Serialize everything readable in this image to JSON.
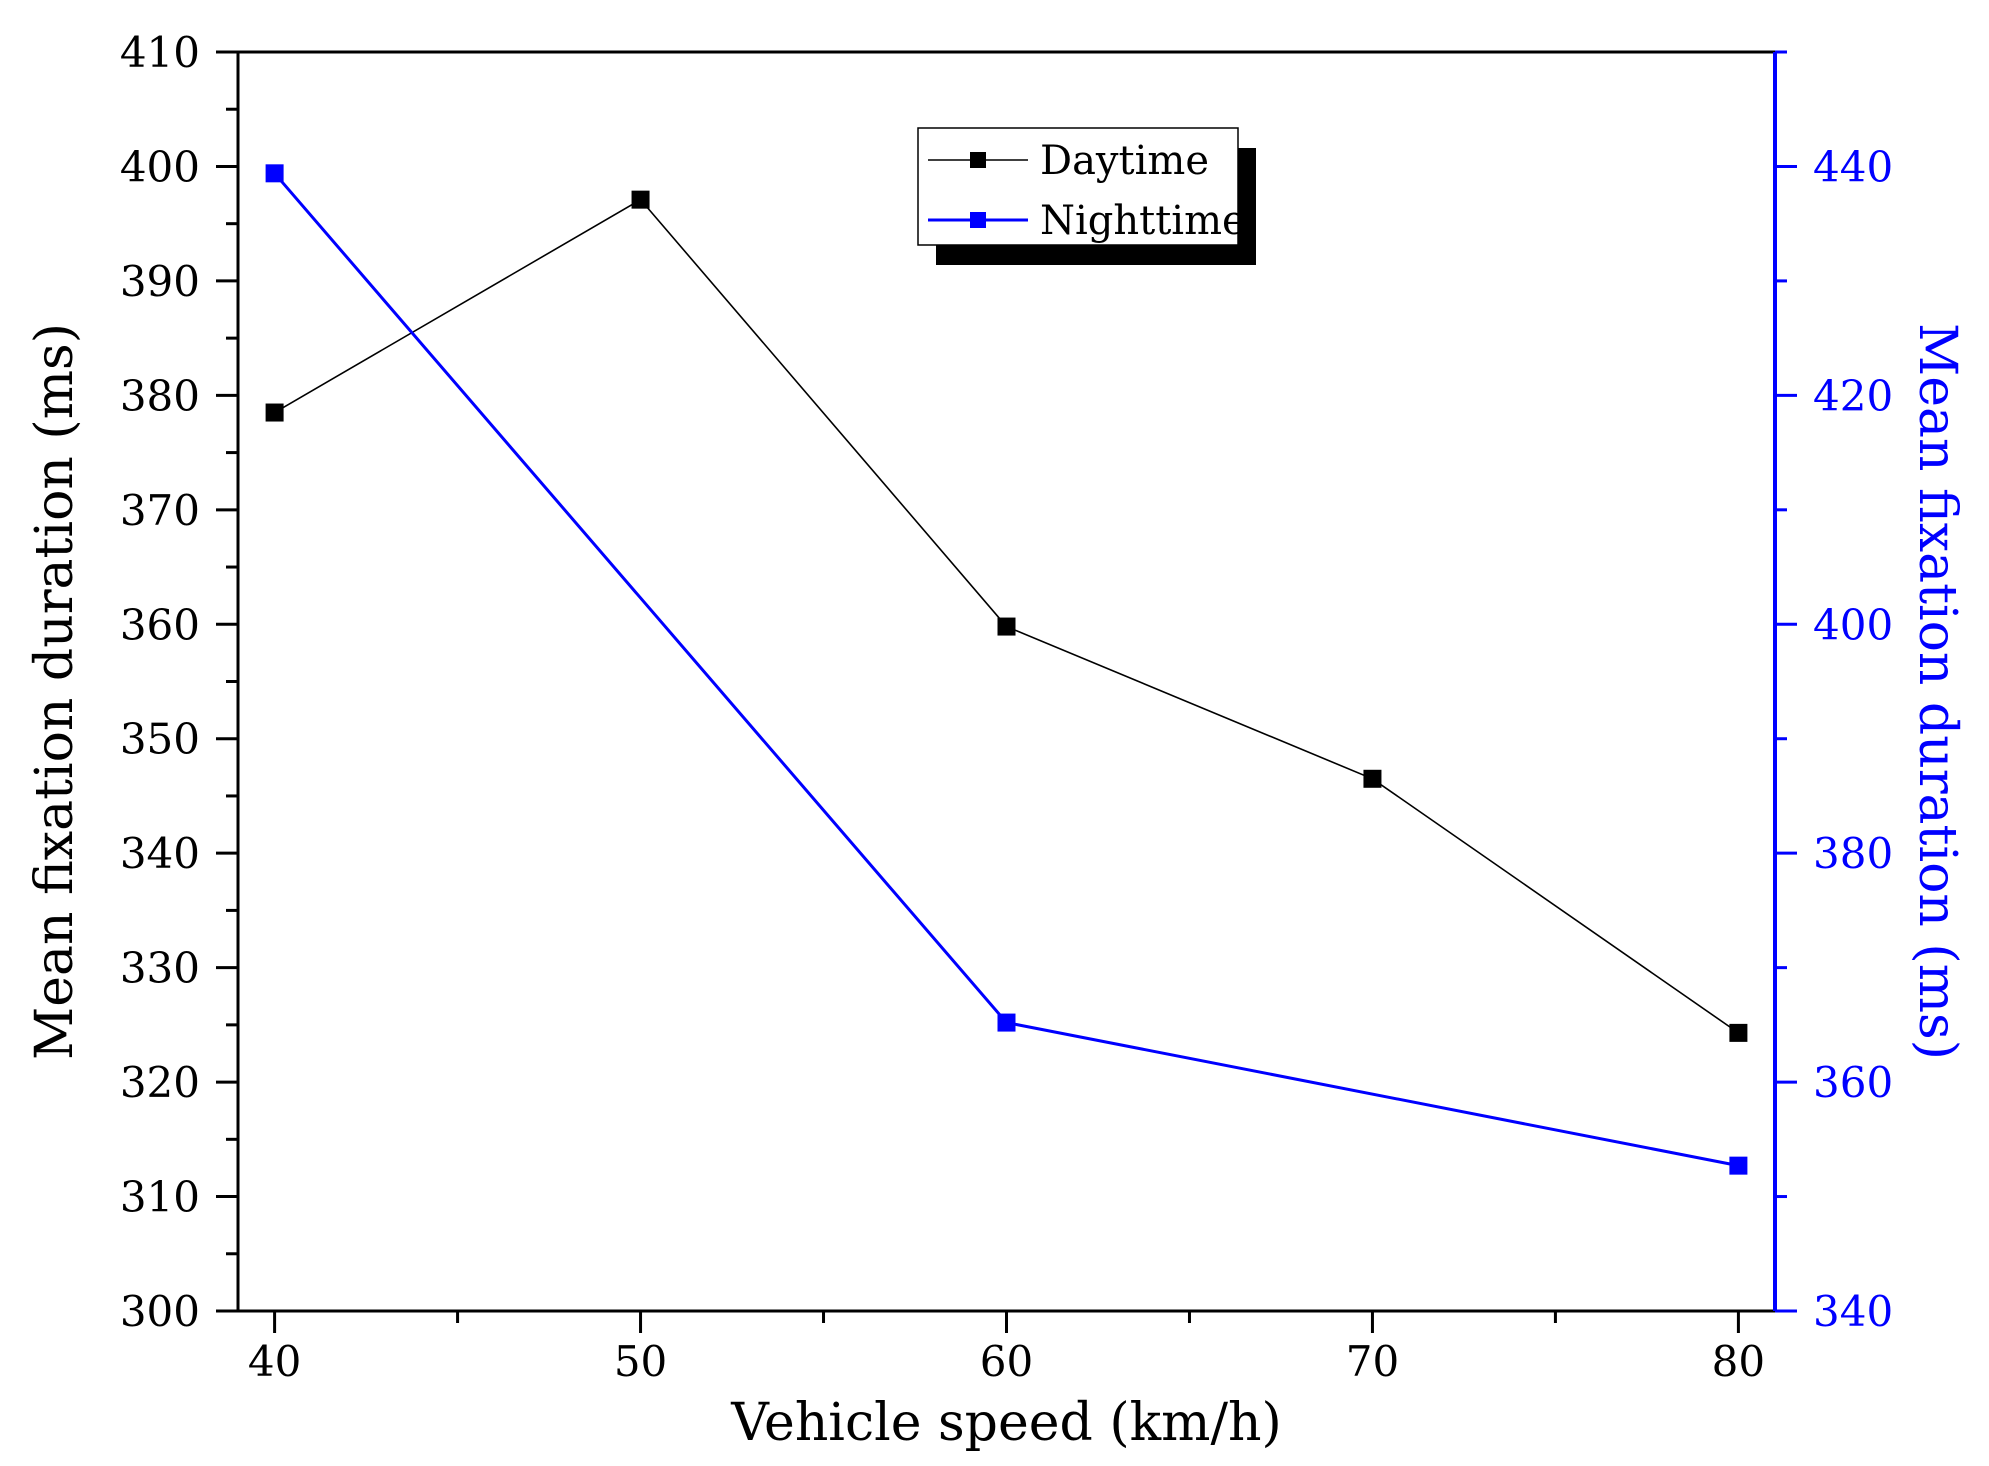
{
  "chart_data": {
    "type": "line",
    "title": "",
    "x": [
      40,
      50,
      60,
      70,
      80
    ],
    "xlabel": "Vehicle speed (km/h)",
    "xlim": [
      39,
      81
    ],
    "x_ticks": [
      "40",
      "50",
      "60",
      "70",
      "80"
    ],
    "ylabel": "Mean fixation duration (ms)",
    "ylim": [
      300,
      410
    ],
    "y_ticks": [
      "300",
      "310",
      "320",
      "330",
      "340",
      "350",
      "360",
      "370",
      "380",
      "390",
      "400",
      "410"
    ],
    "y2label": "Mean fixation duration (ms)",
    "y2lim": [
      340,
      450
    ],
    "y2_ticks": [
      "340",
      "360",
      "380",
      "400",
      "420",
      "440"
    ],
    "grid": false,
    "legend_position": "top-center",
    "series": [
      {
        "name": "Daytime",
        "axis": "left",
        "color": "#000000",
        "x": [
          40,
          50,
          60,
          70,
          80
        ],
        "values": [
          378.5,
          397.1,
          359.8,
          346.5,
          324.3
        ]
      },
      {
        "name": "Nighttime",
        "axis": "right",
        "color": "#0000ff",
        "x": [
          40,
          60,
          80
        ],
        "values": [
          439.4,
          365.2,
          352.7
        ]
      }
    ],
    "colors": {
      "left_axis": "#000000",
      "right_axis": "#0000ff"
    }
  }
}
